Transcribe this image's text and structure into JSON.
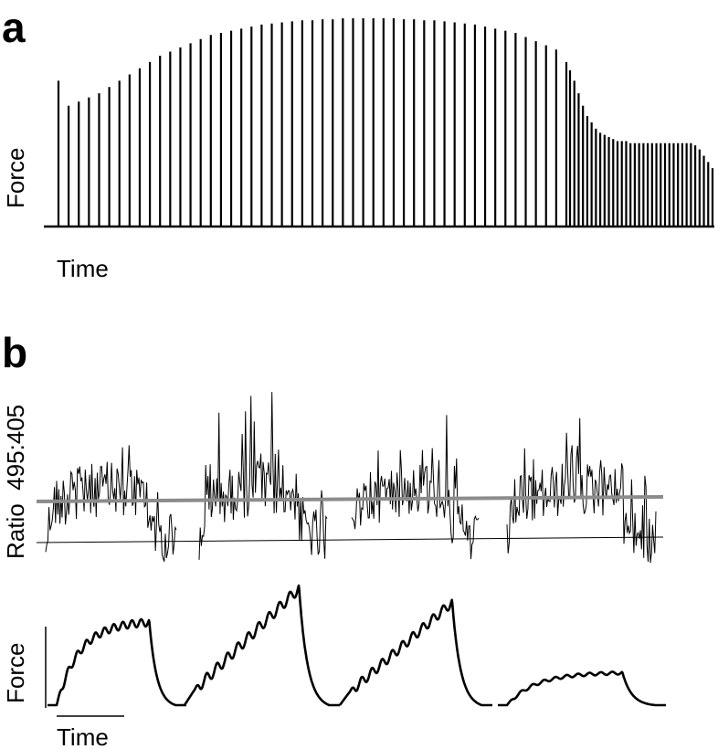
{
  "panels": {
    "a": {
      "letter": "a"
    },
    "b": {
      "letter": "b"
    }
  },
  "chart_data": [
    {
      "type": "line",
      "panel": "a",
      "ylabel": "Force",
      "xlabel": "Time",
      "axes_visible": false,
      "description_of_data": "Repeated brief tetanic contractions; peak force per contraction (baseline = 0, max = 1). Phase 1: 1 contraction then ~48 closely spaced (frequency rising), Phase 2: ~35 rapid contractions at reduced amplitude.",
      "series": [
        {
          "name": "",
          "peaks_phase1": [
            0.7,
            0.58,
            0.6,
            0.62,
            0.64,
            0.67,
            0.7,
            0.73,
            0.76,
            0.79,
            0.82,
            0.84,
            0.86,
            0.88,
            0.9,
            0.92,
            0.93,
            0.94,
            0.95,
            0.96,
            0.97,
            0.975,
            0.98,
            0.985,
            0.99,
            0.99,
            0.995,
            0.995,
            1.0,
            1.0,
            1.0,
            1.0,
            1.0,
            1.0,
            0.995,
            0.995,
            0.99,
            0.99,
            0.985,
            0.98,
            0.975,
            0.97,
            0.96,
            0.95,
            0.94,
            0.93,
            0.91,
            0.89,
            0.87,
            0.85,
            0.79
          ],
          "peaks_phase2": [
            0.75,
            0.7,
            0.64,
            0.58,
            0.53,
            0.5,
            0.47,
            0.45,
            0.44,
            0.43,
            0.42,
            0.41,
            0.41,
            0.41,
            0.4,
            0.4,
            0.4,
            0.4,
            0.4,
            0.4,
            0.4,
            0.4,
            0.4,
            0.4,
            0.4,
            0.4,
            0.4,
            0.4,
            0.4,
            0.39,
            0.37,
            0.34,
            0.31,
            0.28
          ]
        }
      ]
    },
    {
      "type": "line",
      "panel": "b-top",
      "ylabel": "Ratio  495:405",
      "axes_visible": false,
      "groups": 4,
      "reference_lines": [
        "baseline",
        "threshold"
      ]
    },
    {
      "type": "line",
      "panel": "b-bottom",
      "ylabel": "Force",
      "xlabel": "Time",
      "groups": 4,
      "peak_force_relative": [
        0.72,
        1.0,
        0.88,
        0.28
      ],
      "shape": [
        "plateau",
        "rising",
        "rising",
        "plateau"
      ]
    }
  ],
  "labels": {
    "a_ylabel": "Force",
    "a_xlabel": "Time",
    "b_ratio_label": "Ratio  495:405",
    "b_force_label": "Force",
    "b_time_label": "Time"
  },
  "colors": {
    "trace": "#000000",
    "threshold_line": "#8c8c8c"
  }
}
